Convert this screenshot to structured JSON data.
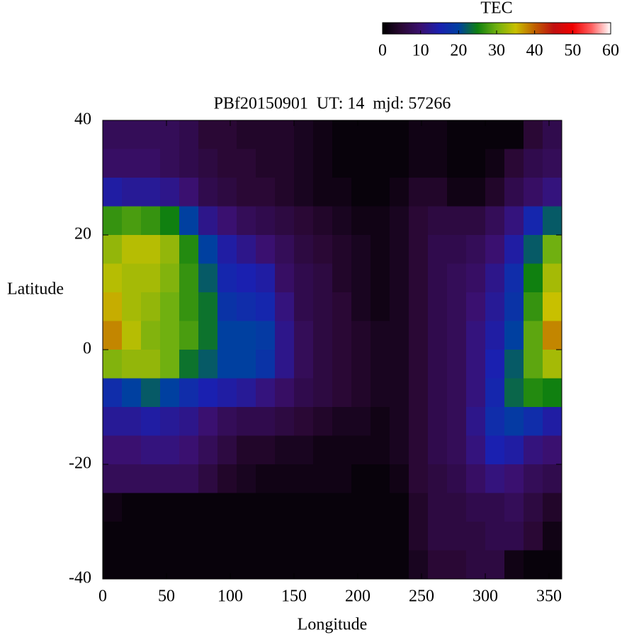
{
  "chart_data": {
    "type": "heatmap",
    "title": "PBf20150901  UT: 14  mjd: 57266",
    "xlabel": "Longitude",
    "ylabel": "Latitude",
    "xlim": [
      0,
      360
    ],
    "ylim": [
      -40,
      40
    ],
    "xticks": [
      0,
      50,
      100,
      150,
      200,
      250,
      300,
      350
    ],
    "yticks": [
      -40,
      -20,
      0,
      20,
      40
    ],
    "xbins": [
      0,
      15,
      30,
      45,
      60,
      75,
      90,
      105,
      120,
      135,
      150,
      165,
      180,
      195,
      210,
      225,
      240,
      255,
      270,
      285,
      300,
      315,
      330,
      345,
      360
    ],
    "ybins": [
      40,
      35,
      30,
      25,
      20,
      15,
      10,
      5,
      0,
      -5,
      -10,
      -15,
      -20,
      -25,
      -30,
      -35,
      -40
    ],
    "z": [
      [
        8,
        8,
        8,
        8,
        7,
        5,
        5,
        4,
        4,
        4,
        3,
        2,
        1,
        1,
        1,
        1,
        2,
        2,
        1,
        1,
        1,
        1,
        5,
        7
      ],
      [
        9,
        9,
        9,
        8,
        7,
        6,
        5,
        5,
        4,
        4,
        3,
        2,
        1,
        1,
        1,
        1,
        2,
        2,
        1,
        1,
        2,
        5,
        7,
        8
      ],
      [
        14,
        13,
        13,
        12,
        10,
        7,
        6,
        5,
        5,
        4,
        3,
        2,
        2,
        1,
        1,
        2,
        4,
        4,
        2,
        2,
        4,
        7,
        9,
        11
      ],
      [
        27,
        28,
        27,
        25,
        20,
        12,
        10,
        8,
        7,
        6,
        5,
        4,
        3,
        2,
        2,
        3,
        5,
        6,
        6,
        6,
        8,
        11,
        16,
        22
      ],
      [
        32,
        34,
        34,
        32,
        26,
        20,
        14,
        12,
        10,
        8,
        6,
        5,
        4,
        3,
        2,
        3,
        5,
        7,
        7,
        8,
        10,
        14,
        22,
        30
      ],
      [
        34,
        33,
        33,
        31,
        27,
        22,
        16,
        15,
        14,
        9,
        7,
        6,
        4,
        3,
        2,
        3,
        5,
        7,
        8,
        9,
        12,
        17,
        25,
        33
      ],
      [
        36,
        33,
        32,
        30,
        27,
        24,
        18,
        17,
        16,
        11,
        7,
        6,
        5,
        3,
        2,
        3,
        5,
        7,
        8,
        10,
        13,
        18,
        27,
        35
      ],
      [
        38,
        34,
        31,
        30,
        28,
        24,
        20,
        20,
        19,
        12,
        8,
        6,
        5,
        4,
        3,
        3,
        5,
        7,
        8,
        11,
        14,
        20,
        29,
        38
      ],
      [
        31,
        32,
        32,
        30,
        24,
        22,
        20,
        20,
        18,
        12,
        8,
        6,
        5,
        4,
        3,
        3,
        5,
        7,
        8,
        11,
        15,
        22,
        29,
        33
      ],
      [
        17,
        20,
        22,
        20,
        17,
        15,
        14,
        13,
        11,
        9,
        7,
        6,
        5,
        4,
        3,
        3,
        5,
        7,
        8,
        11,
        16,
        23,
        26,
        25
      ],
      [
        13,
        13,
        14,
        13,
        12,
        10,
        8,
        7,
        7,
        6,
        5,
        4,
        3,
        3,
        2,
        3,
        5,
        7,
        8,
        12,
        17,
        19,
        17,
        14
      ],
      [
        10,
        10,
        11,
        11,
        10,
        8,
        6,
        4,
        4,
        3,
        3,
        2,
        2,
        2,
        2,
        3,
        5,
        7,
        8,
        11,
        15,
        14,
        11,
        10
      ],
      [
        8,
        8,
        8,
        8,
        8,
        6,
        4,
        3,
        2,
        2,
        2,
        2,
        2,
        1,
        1,
        2,
        5,
        6,
        7,
        9,
        11,
        10,
        8,
        7
      ],
      [
        2,
        1,
        1,
        1,
        1,
        1,
        1,
        1,
        1,
        1,
        1,
        1,
        1,
        1,
        1,
        1,
        4,
        6,
        6,
        7,
        7,
        8,
        6,
        4
      ],
      [
        1,
        1,
        1,
        1,
        1,
        1,
        1,
        1,
        1,
        1,
        1,
        1,
        1,
        1,
        1,
        1,
        4,
        6,
        6,
        6,
        7,
        7,
        5,
        2
      ],
      [
        1,
        1,
        1,
        1,
        1,
        1,
        1,
        1,
        1,
        1,
        1,
        1,
        1,
        1,
        1,
        1,
        3,
        5,
        5,
        6,
        6,
        2,
        1,
        1
      ]
    ],
    "colorbar": {
      "title": "TEC",
      "lim": [
        0,
        60
      ],
      "ticks": [
        0,
        10,
        20,
        30,
        40,
        50,
        60
      ],
      "colors": [
        "#000000",
        "#2a0835",
        "#3a1070",
        "#1a20b0",
        "#0040a0",
        "#108010",
        "#70b010",
        "#c8c000",
        "#c06000",
        "#c01010",
        "#f00000",
        "#ff6060",
        "#ffffff"
      ]
    }
  }
}
